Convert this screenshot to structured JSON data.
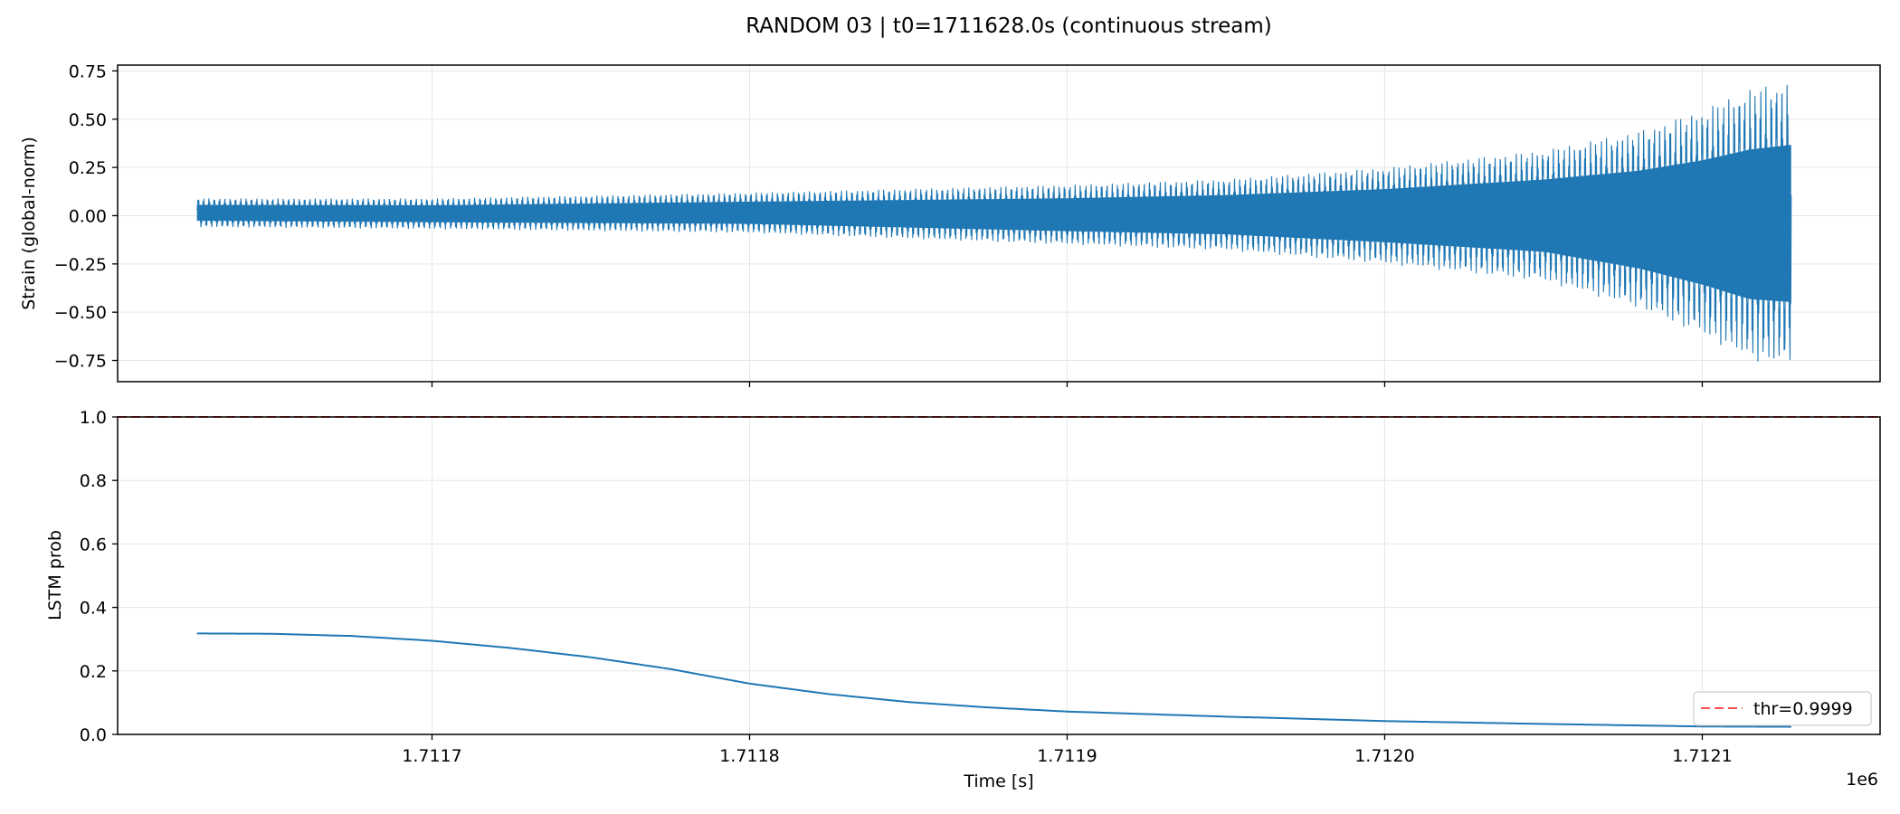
{
  "figure": {
    "title": "RANDOM 03 | t0=1711628.0s (continuous stream)"
  },
  "colors": {
    "series": "#1f77b4",
    "threshold": "#ff4d4d",
    "grid": "#e6e6e6",
    "axis": "#000000"
  },
  "chart_data": [
    {
      "type": "line",
      "name": "strain-panel",
      "title": "",
      "xlabel": "",
      "ylabel": "Strain (global-norm)",
      "xlim": [
        1711601.0,
        1712156.0
      ],
      "ylim": [
        -0.86,
        0.78
      ],
      "x_ticks": [
        1711700,
        1711800,
        1711900,
        1712000,
        1712100
      ],
      "y_ticks": [
        -0.75,
        -0.5,
        -0.25,
        0.0,
        0.25,
        0.5,
        0.75
      ],
      "y_tick_labels": [
        "−0.75",
        "−0.50",
        "−0.25",
        "0.00",
        "0.25",
        "0.50",
        "0.75"
      ],
      "grid": true,
      "series": [
        {
          "name": "strain",
          "kind": "chirp",
          "x_start": 1711626.0,
          "x_end": 1712128.0,
          "cycles": 300,
          "envelope_x": [
            1711626,
            1711700,
            1711800,
            1711900,
            1711950,
            1712000,
            1712050,
            1712080,
            1712100,
            1712115,
            1712128
          ],
          "envelope_upper": [
            0.09,
            0.09,
            0.12,
            0.16,
            0.19,
            0.25,
            0.34,
            0.44,
            0.55,
            0.66,
            0.7
          ],
          "envelope_lower": [
            -0.06,
            -0.07,
            -0.09,
            -0.15,
            -0.18,
            -0.25,
            -0.34,
            -0.48,
            -0.62,
            -0.75,
            -0.78
          ]
        }
      ]
    },
    {
      "type": "line",
      "name": "lstm-panel",
      "title": "",
      "xlabel": "Time [s]",
      "ylabel": "LSTM prob",
      "x_offset_label": "1e6",
      "xlim": [
        1711601.0,
        1712156.0
      ],
      "ylim": [
        0.0,
        1.0
      ],
      "x_ticks": [
        1711700,
        1711800,
        1711900,
        1712000,
        1712100
      ],
      "x_tick_labels": [
        "1.7117",
        "1.7118",
        "1.7119",
        "1.7120",
        "1.7121"
      ],
      "y_ticks": [
        0.0,
        0.2,
        0.4,
        0.6,
        0.8,
        1.0
      ],
      "y_tick_labels": [
        "0.0",
        "0.2",
        "0.4",
        "0.6",
        "0.8",
        "1.0"
      ],
      "grid": true,
      "legend": {
        "position": "bottom-right",
        "entries": [
          "thr=0.9999"
        ]
      },
      "threshold": {
        "label": "thr=0.9999",
        "value": 0.9999
      },
      "series": [
        {
          "name": "LSTM prob",
          "x": [
            1711626,
            1711650,
            1711675,
            1711700,
            1711725,
            1711750,
            1711775,
            1711800,
            1711825,
            1711850,
            1711875,
            1711900,
            1711950,
            1712000,
            1712050,
            1712100,
            1712128
          ],
          "y": [
            0.318,
            0.317,
            0.31,
            0.295,
            0.272,
            0.243,
            0.206,
            0.16,
            0.127,
            0.102,
            0.085,
            0.072,
            0.056,
            0.042,
            0.033,
            0.025,
            0.024
          ]
        }
      ]
    }
  ]
}
